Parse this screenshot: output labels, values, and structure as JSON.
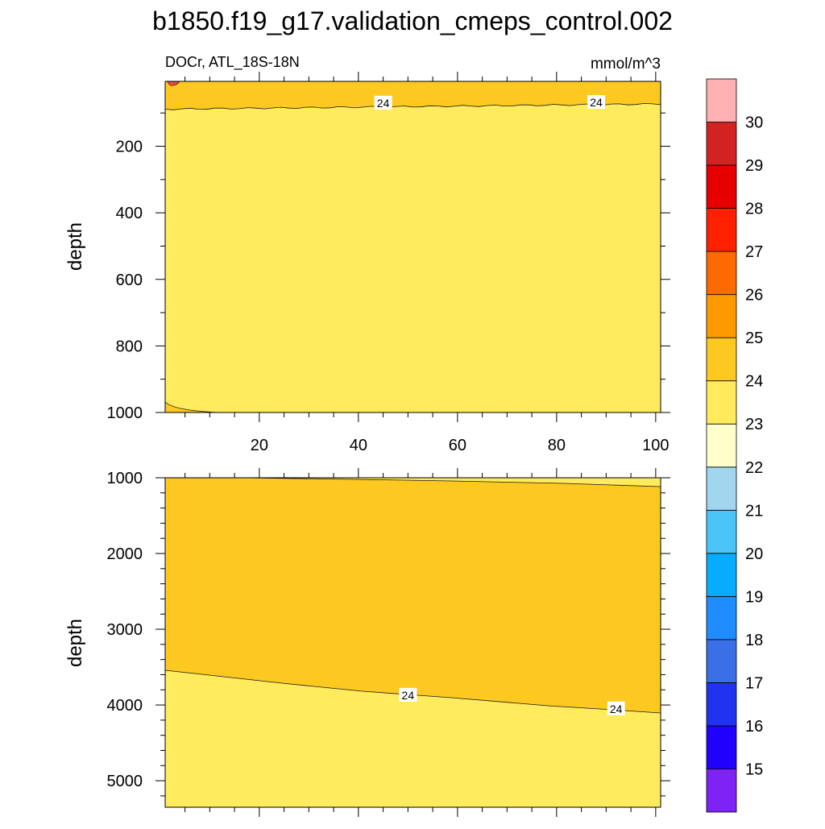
{
  "chart_data": {
    "type": "contour",
    "title": "b1850.f19_g17.validation_cmeps_control.002",
    "subtitle_left": "DOCr, ATL_18S-18N",
    "units": "mmol/m^3",
    "colors": {
      "contour_line": "#1a1a1a",
      "label_bg": "#ffffff",
      "band_23_24": "#FFEB5C",
      "band_24_25": "#FDC81F"
    },
    "colorbar": {
      "levels": [
        "15",
        "16",
        "17",
        "18",
        "19",
        "20",
        "21",
        "22",
        "23",
        "24",
        "25",
        "26",
        "27",
        "28",
        "29",
        "30"
      ],
      "colors": [
        "#7F22F5",
        "#2200FF",
        "#2233F0",
        "#3B6FE8",
        "#1F8CFF",
        "#08ACFF",
        "#4AC3F7",
        "#A1D6EE",
        "#FFFFCC",
        "#FFEB5C",
        "#FDC81F",
        "#FF9900",
        "#FF6A00",
        "#FF2000",
        "#E60000",
        "#D22222",
        "#FFB0B3"
      ]
    },
    "panels": [
      {
        "name": "upper",
        "xlim": [
          1,
          101
        ],
        "ylim": [
          1000,
          5
        ],
        "ylabel": "depth",
        "xticks": [
          "20",
          "40",
          "60",
          "80",
          "100"
        ],
        "yticks": [
          "200",
          "400",
          "600",
          "800",
          "1000"
        ],
        "contour_labels": [
          {
            "text": "24",
            "x": 45,
            "y": 70
          },
          {
            "text": "24",
            "x": 88,
            "y": 68
          }
        ]
      },
      {
        "name": "lower",
        "xlim": [
          1,
          101
        ],
        "ylim": [
          5350,
          1000
        ],
        "ylabel": "depth",
        "yticks": [
          "1000",
          "2000",
          "3000",
          "4000",
          "5000"
        ],
        "contour_labels": [
          {
            "text": "24",
            "x": 50,
            "y": 3870
          },
          {
            "text": "24",
            "x": 92,
            "y": 4050
          }
        ]
      }
    ]
  }
}
